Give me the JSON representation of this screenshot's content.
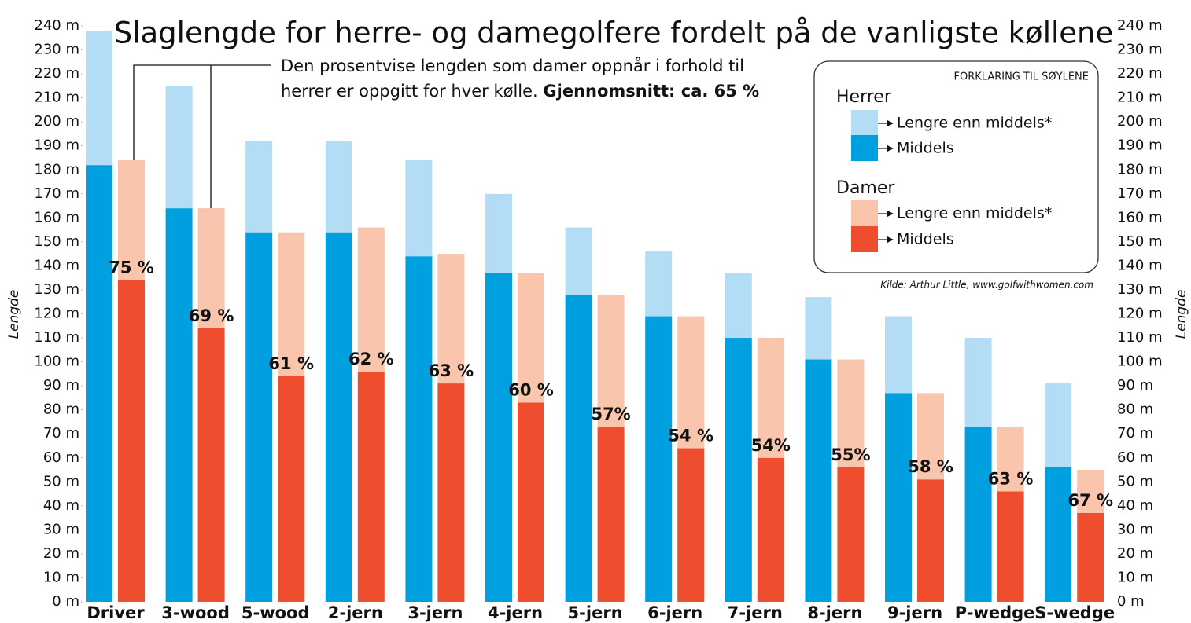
{
  "chart_data": {
    "type": "bar",
    "title": "Slaglengde for herre- og damegolfere fordelt på de vanligste køllene",
    "y_label": "Lengde",
    "annotation_lines": [
      "Den prosentvise lengden som damer oppnår i forhold til",
      "herrer er oppgitt for hver kølle."
    ],
    "annotation_bold": "Gjennomsnitt: ca. 65 %",
    "legend_title": "FORKLARING TIL SØYLENE",
    "source": "Kilde: Arthur Little, www.golfwithwomen.com",
    "categories": [
      "Driver",
      "3-wood",
      "5-wood",
      "2-jern",
      "3-jern",
      "4-jern",
      "5-jern",
      "6-jern",
      "7-jern",
      "8-jern",
      "9-jern",
      "P-wedge",
      "S-wedge"
    ],
    "stacked": true,
    "series": [
      {
        "name": "Middels",
        "group": "Herrer",
        "color": "#009fe0",
        "values": [
          182,
          164,
          154,
          154,
          144,
          137,
          128,
          119,
          110,
          101,
          87,
          73,
          56
        ]
      },
      {
        "name": "Lengre enn middels*",
        "group": "Herrer",
        "color": "#b3dcf5",
        "values": [
          56,
          51,
          38,
          38,
          40,
          33,
          28,
          27,
          27,
          26,
          32,
          37,
          35
        ]
      },
      {
        "name": "Middels",
        "group": "Damer",
        "color": "#ee4e2d",
        "values": [
          134,
          114,
          94,
          96,
          91,
          83,
          73,
          64,
          60,
          56,
          51,
          46,
          37
        ]
      },
      {
        "name": "Lengre enn middels*",
        "group": "Damer",
        "color": "#f9c5ad",
        "values": [
          50,
          50,
          60,
          60,
          54,
          54,
          55,
          55,
          50,
          45,
          36,
          27,
          18
        ]
      }
    ],
    "percent_labels": [
      "75 %",
      "69 %",
      "61 %",
      "62 %",
      "63 %",
      "60 %",
      "57%",
      "54 %",
      "54%",
      "55%",
      "58 %",
      "63 %",
      "67 %"
    ],
    "ylim": [
      0,
      240
    ],
    "yticks": [
      {
        "value": 0,
        "label": "0 m"
      },
      {
        "value": 10,
        "label": "10 m"
      },
      {
        "value": 20,
        "label": "20 m"
      },
      {
        "value": 30,
        "label": "30 m"
      },
      {
        "value": 40,
        "label": "40 m"
      },
      {
        "value": 50,
        "label": "50 m"
      },
      {
        "value": 60,
        "label": "60 m"
      },
      {
        "value": 70,
        "label": "70 m"
      },
      {
        "value": 80,
        "label": "80 m"
      },
      {
        "value": 90,
        "label": "90 m"
      },
      {
        "value": 100,
        "label": "100 m"
      },
      {
        "value": 110,
        "label": "110 m"
      },
      {
        "value": 120,
        "label": "120 m"
      },
      {
        "value": 130,
        "label": "130 m"
      },
      {
        "value": 140,
        "label": "140 m"
      },
      {
        "value": 150,
        "label": "150 m"
      },
      {
        "value": 160,
        "label": "160 m"
      },
      {
        "value": 170,
        "label": "170 m"
      },
      {
        "value": 180,
        "label": "180 m"
      },
      {
        "value": 190,
        "label": "190 m"
      },
      {
        "value": 200,
        "label": "200 m"
      },
      {
        "value": 210,
        "label": "210 m"
      },
      {
        "value": 220,
        "label": "220 m"
      },
      {
        "value": 230,
        "label": "230 m"
      },
      {
        "value": 240,
        "label": "240 m"
      }
    ],
    "grid": false
  }
}
